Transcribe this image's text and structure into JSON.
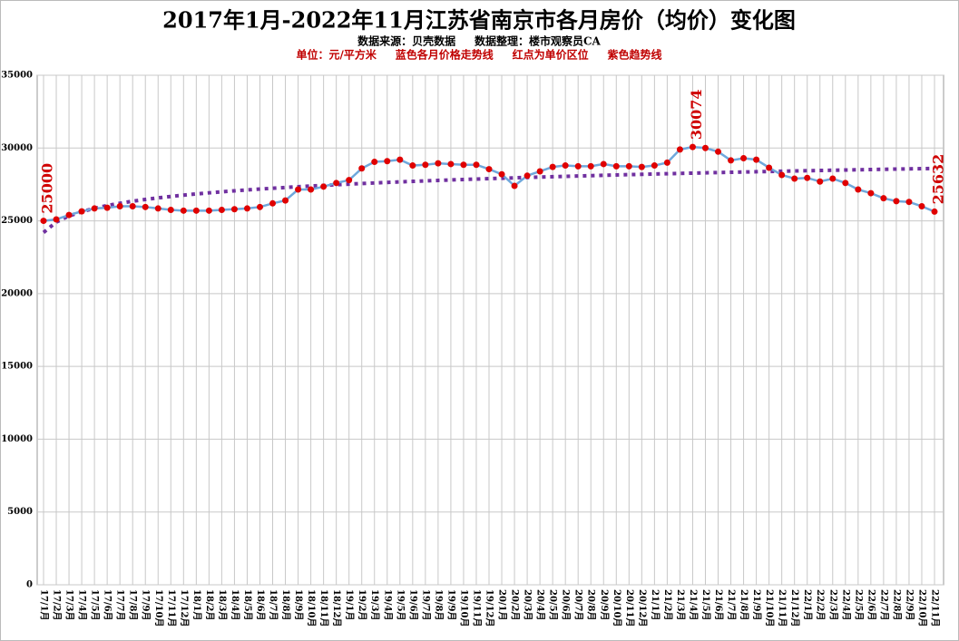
{
  "chart_data": {
    "type": "line",
    "title": "2017年1月-2022年11月江苏省南京市各月房价（均价）变化图",
    "subtitle": "数据来源：贝壳数据     数据整理：楼市观察员CA",
    "note": "单位：元/平方米     蓝色各月价格走势线     红点为单价区位     紫色趋势线",
    "categories": [
      "17/1月",
      "17/2月",
      "17/3月",
      "17/4月",
      "17/5月",
      "17/6月",
      "17/7月",
      "17/8月",
      "17/9月",
      "17/10月",
      "17/11月",
      "17/12月",
      "18/1月",
      "18/2月",
      "18/3月",
      "18/4月",
      "18/5月",
      "18/6月",
      "18/7月",
      "18/8月",
      "18/9月",
      "18/10月",
      "18/11月",
      "18/12月",
      "19/1月",
      "19/2月",
      "19/3月",
      "19/4月",
      "19/5月",
      "19/6月",
      "19/7月",
      "19/8月",
      "19/9月",
      "19/10月",
      "19/11月",
      "19/12月",
      "20/1月",
      "20/2月",
      "20/3月",
      "20/4月",
      "20/5月",
      "20/6月",
      "20/7月",
      "20/8月",
      "20/9月",
      "20/10月",
      "20/11月",
      "20/12月",
      "21/1月",
      "21/2月",
      "21/3月",
      "21/4月",
      "21/5月",
      "21/6月",
      "21/7月",
      "21/8月",
      "21/9月",
      "21/10月",
      "21/11月",
      "21/12月",
      "22/1月",
      "22/2月",
      "22/3月",
      "22/4月",
      "22/5月",
      "22/6月",
      "22/7月",
      "22/8月",
      "22/9月",
      "22/10月",
      "22/11月"
    ],
    "values": [
      25000,
      25100,
      25400,
      25650,
      25850,
      25900,
      26000,
      26000,
      25950,
      25850,
      25750,
      25700,
      25700,
      25700,
      25750,
      25800,
      25850,
      25950,
      26200,
      26400,
      27150,
      27150,
      27350,
      27600,
      27800,
      28600,
      29050,
      29100,
      29200,
      28800,
      28850,
      28950,
      28900,
      28850,
      28850,
      28550,
      28200,
      27400,
      28100,
      28400,
      28700,
      28800,
      28750,
      28750,
      28900,
      28750,
      28750,
      28700,
      28800,
      29000,
      29900,
      30074,
      30000,
      29750,
      29150,
      29300,
      29200,
      28650,
      28150,
      27900,
      27950,
      27700,
      27900,
      27600,
      27150,
      26900,
      26550,
      26350,
      26300,
      26000,
      25632
    ],
    "color": "#6fa8dc",
    "marker_color": "#e00000",
    "labeled_points": [
      0,
      51,
      70
    ],
    "label_color": "#d00000",
    "trendline": {
      "type": "logarithmic",
      "intercept": 24200,
      "slope": 1032,
      "color": "#7030a0"
    },
    "ylim": [
      0,
      35000
    ],
    "yticks": [
      0,
      5000,
      10000,
      15000,
      20000,
      25000,
      30000,
      35000
    ],
    "grid": true
  }
}
